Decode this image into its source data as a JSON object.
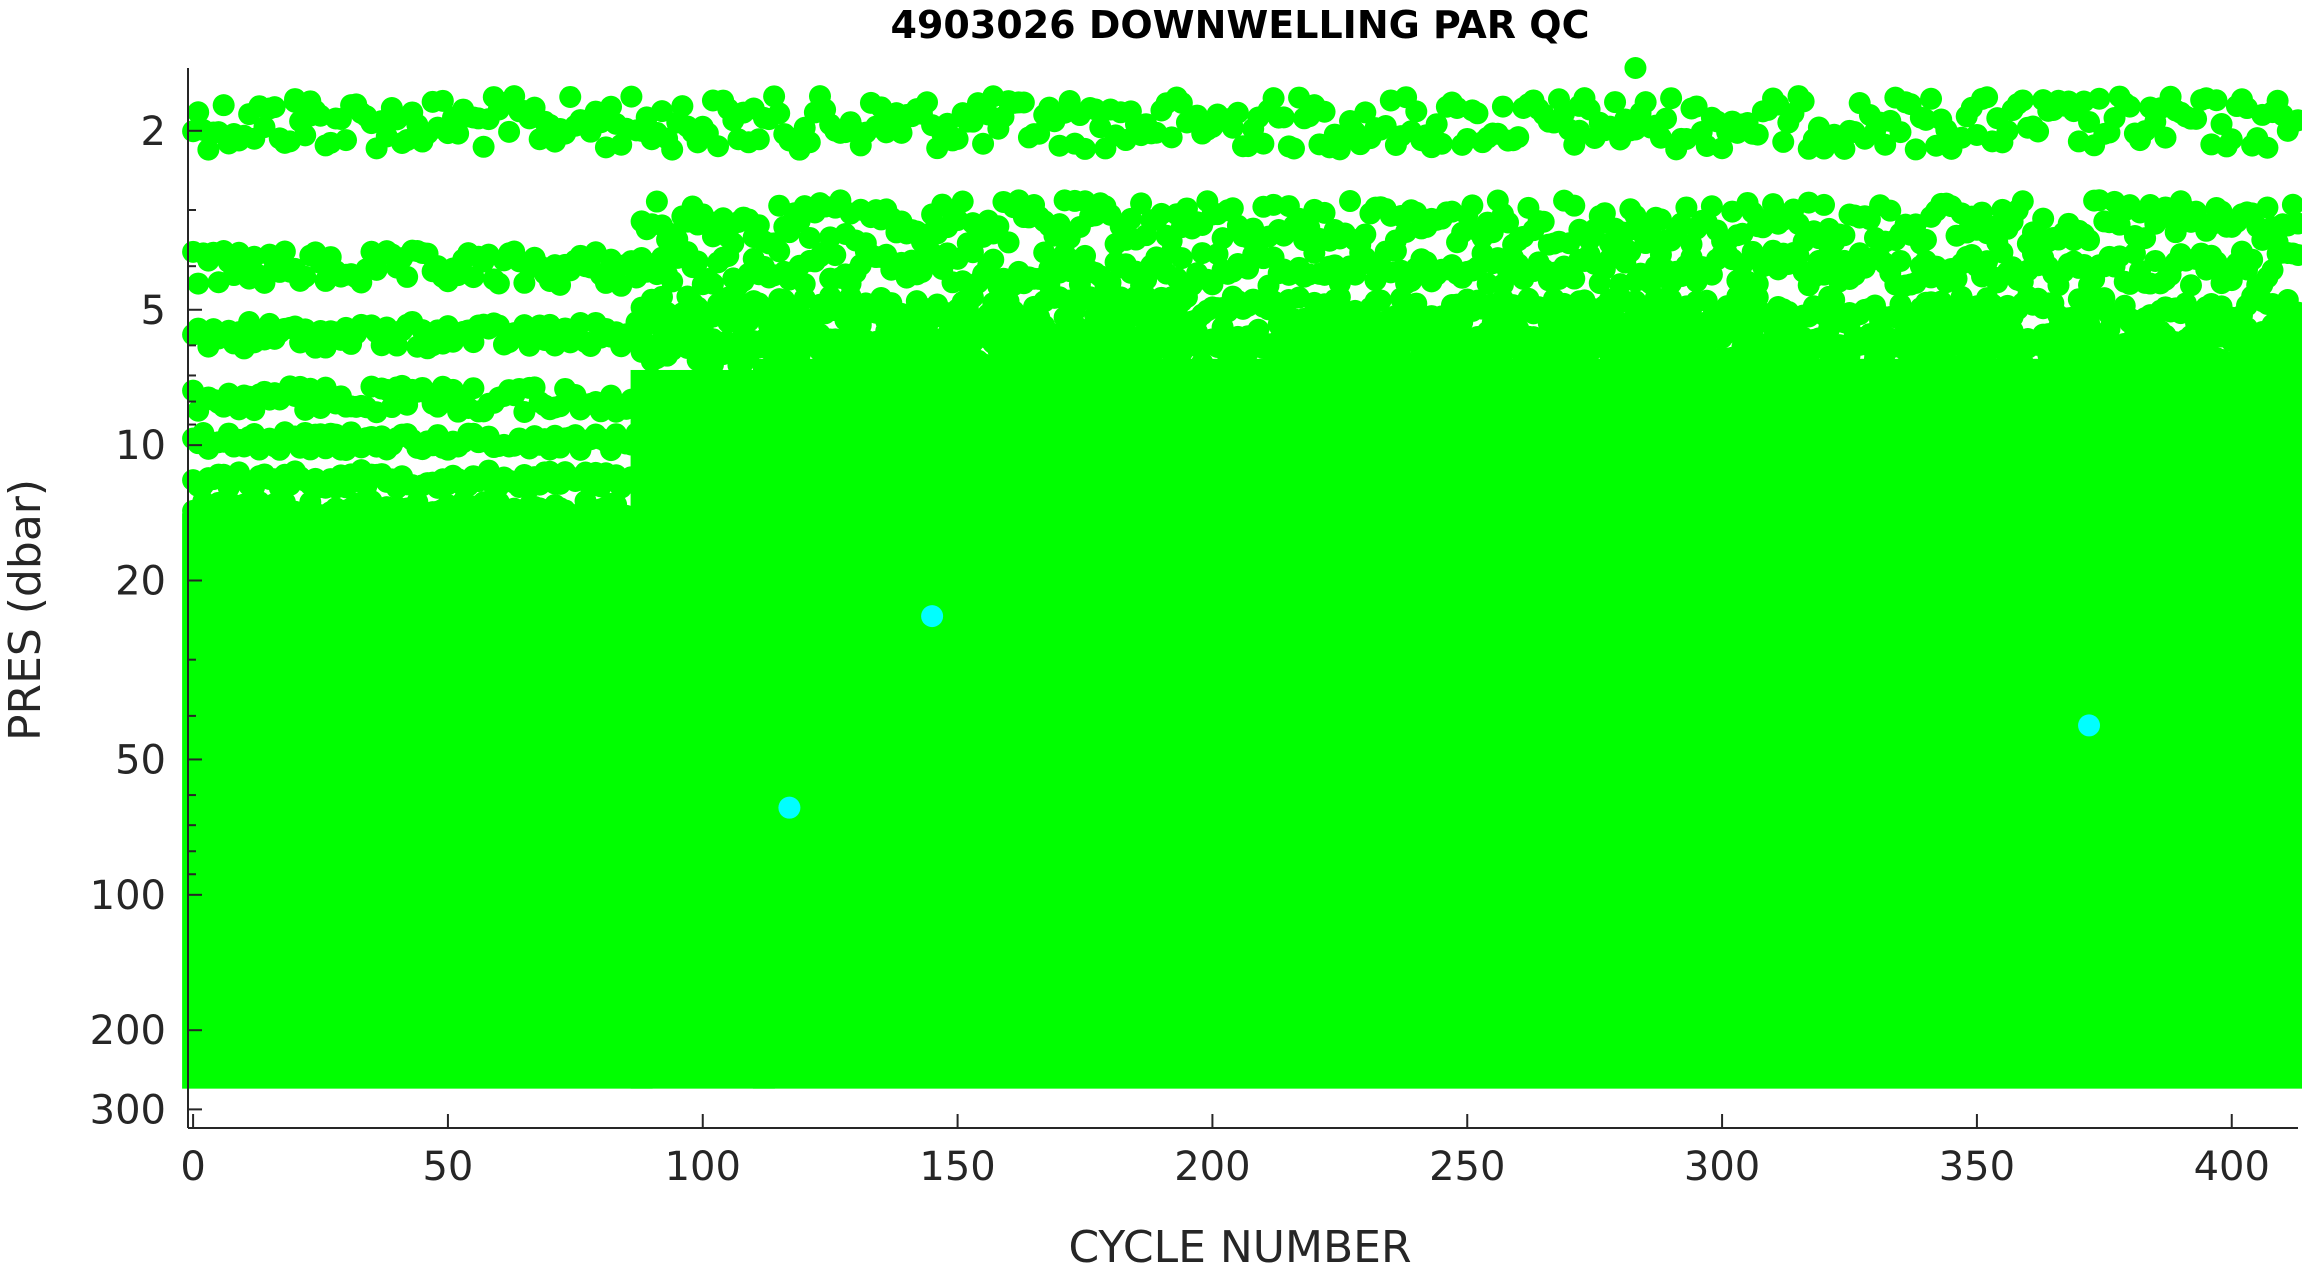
{
  "chart_data": {
    "type": "scatter",
    "title": "4903026  DOWNWELLING PAR QC",
    "xlabel": "CYCLE NUMBER",
    "ylabel": "PRES (dbar)",
    "x_range": [
      -1,
      413
    ],
    "y_range": [
      1.45,
      330
    ],
    "y_scale": "log",
    "y_reversed": true,
    "grid": false,
    "legend": "none",
    "x_ticks": [
      0,
      50,
      100,
      150,
      200,
      250,
      300,
      350,
      400
    ],
    "x_tick_labels": [
      "0",
      "50",
      "100",
      "150",
      "200",
      "250",
      "300",
      "350",
      "400"
    ],
    "y_ticks": [
      2,
      5,
      10,
      20,
      50,
      100,
      200,
      300
    ],
    "y_tick_labels": [
      "2",
      "5",
      "10",
      "20",
      "50",
      "100",
      "200",
      "300"
    ],
    "y_minor_ticks": [
      3,
      4,
      6,
      7,
      8,
      9,
      30,
      40,
      60,
      70,
      80,
      90
    ],
    "fill_regions": [
      {
        "x": [
          0,
          88
        ],
        "top_pres": 15,
        "bottom_pres": 255
      },
      {
        "x": [
          88,
          112
        ],
        "top_pres": 7.2,
        "bottom_pres": 255
      },
      {
        "x": [
          112,
          413
        ],
        "top_pres": 9.0,
        "bottom_pres": 255
      },
      {
        "x": [
          112,
          413
        ],
        "top_pres": 6.8,
        "bottom_pres": 9.0
      }
    ],
    "series": [
      {
        "color": "#00ff00",
        "bands": [
          {
            "x": [
              0,
              413
            ],
            "pres": 1.92,
            "jitter": 0.06
          },
          {
            "x": [
              88,
              413
            ],
            "pres": 3.2,
            "jitter": 0.05
          },
          {
            "x": [
              0,
              413
            ],
            "pres": 4.05,
            "jitter": 0.04
          },
          {
            "x": [
              88,
              413
            ],
            "pres": 5.0,
            "jitter": 0.03
          },
          {
            "x": [
              0,
              413
            ],
            "pres": 5.7,
            "jitter": 0.03
          },
          {
            "x": [
              88,
              413
            ],
            "pres": 6.2,
            "jitter": 0.03
          },
          {
            "x": [
              0,
              88
            ],
            "pres": 7.9,
            "jitter": 0.03
          },
          {
            "x": [
              0,
              88
            ],
            "pres": 9.8,
            "jitter": 0.02
          },
          {
            "x": [
              0,
              88
            ],
            "pres": 11.9,
            "jitter": 0.02
          },
          {
            "x": [
              0,
              88
            ],
            "pres": 13.9,
            "jitter": 0.02
          }
        ]
      },
      {
        "color": "#00ffff",
        "points": [
          {
            "x": 117,
            "y": 64
          },
          {
            "x": 145,
            "y": 24
          },
          {
            "x": 372,
            "y": 42
          }
        ]
      }
    ],
    "outliers": [
      {
        "x": 283,
        "y": 1.45
      },
      {
        "x": 20,
        "y": 1.7
      },
      {
        "x": 23,
        "y": 1.72
      },
      {
        "x": 168,
        "y": 4.4
      },
      {
        "x": 272,
        "y": 2.0
      }
    ]
  }
}
